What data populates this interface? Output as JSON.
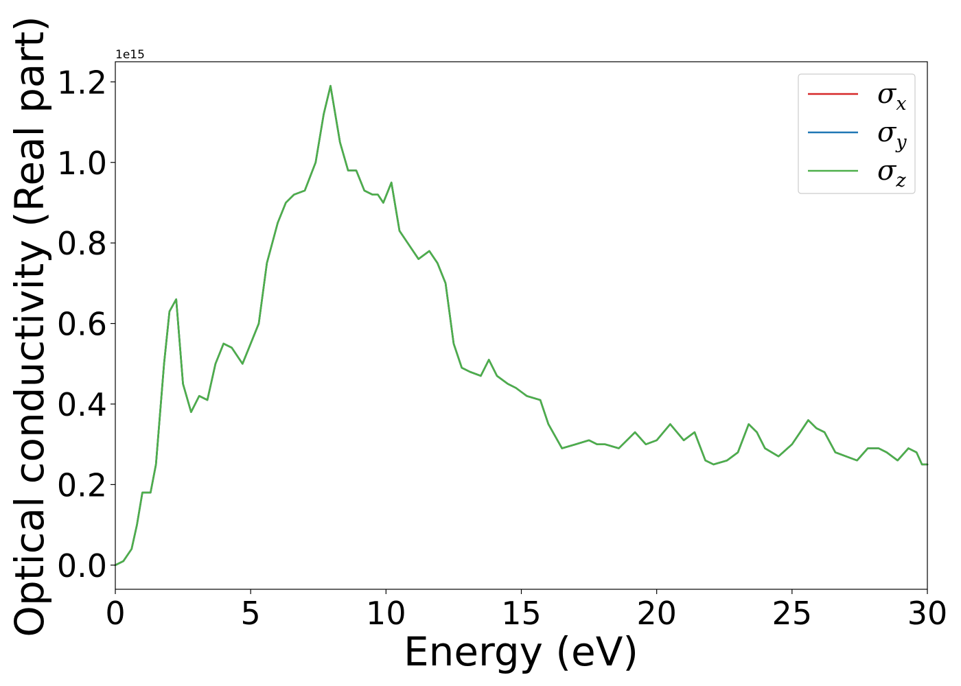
{
  "chart_data": {
    "type": "line",
    "xlabel": "Energy (eV)",
    "ylabel": "Optical conductivity (Real part)",
    "y_offset_label": "1e15",
    "xlim": [
      0,
      30
    ],
    "ylim": [
      -0.06,
      1.25
    ],
    "xticks": [
      0,
      5,
      10,
      15,
      20,
      25,
      30
    ],
    "xtick_labels": [
      "0",
      "5",
      "10",
      "15",
      "20",
      "25",
      "30"
    ],
    "yticks": [
      0.0,
      0.2,
      0.4,
      0.6,
      0.8,
      1.0,
      1.2
    ],
    "ytick_labels": [
      "0.0",
      "0.2",
      "0.4",
      "0.6",
      "0.8",
      "1.0",
      "1.2"
    ],
    "grid": false,
    "legend_position": "top-right",
    "x": [
      0,
      0.3,
      0.6,
      0.8,
      1.0,
      1.1,
      1.3,
      1.5,
      1.8,
      2.0,
      2.25,
      2.5,
      2.8,
      3.1,
      3.4,
      3.7,
      4.0,
      4.3,
      4.7,
      5.0,
      5.3,
      5.6,
      6.0,
      6.3,
      6.6,
      7.0,
      7.4,
      7.7,
      7.95,
      8.3,
      8.6,
      8.9,
      9.2,
      9.5,
      9.7,
      9.9,
      10.2,
      10.5,
      10.8,
      11.2,
      11.6,
      11.9,
      12.2,
      12.5,
      12.8,
      13.1,
      13.5,
      13.8,
      14.1,
      14.5,
      14.8,
      15.2,
      15.7,
      16.0,
      16.5,
      17.0,
      17.5,
      17.8,
      18.1,
      18.6,
      19.2,
      19.6,
      20.0,
      20.5,
      21.0,
      21.4,
      21.8,
      22.1,
      22.6,
      23.0,
      23.4,
      23.7,
      24.0,
      24.5,
      25.0,
      25.3,
      25.6,
      25.9,
      26.2,
      26.6,
      27.0,
      27.4,
      27.8,
      28.2,
      28.5,
      28.9,
      29.3,
      29.6,
      29.8,
      30.0
    ],
    "series": [
      {
        "name": "σx",
        "base": "σ",
        "sub": "x",
        "color": "#d62728",
        "values": [
          0.0,
          0.01,
          0.04,
          0.1,
          0.18,
          0.18,
          0.18,
          0.25,
          0.5,
          0.63,
          0.66,
          0.45,
          0.38,
          0.42,
          0.41,
          0.5,
          0.55,
          0.54,
          0.5,
          0.55,
          0.6,
          0.75,
          0.85,
          0.9,
          0.92,
          0.93,
          1.0,
          1.12,
          1.19,
          1.05,
          0.98,
          0.98,
          0.93,
          0.92,
          0.92,
          0.9,
          0.95,
          0.83,
          0.8,
          0.76,
          0.78,
          0.75,
          0.7,
          0.55,
          0.49,
          0.48,
          0.47,
          0.51,
          0.47,
          0.45,
          0.44,
          0.42,
          0.41,
          0.35,
          0.29,
          0.3,
          0.31,
          0.3,
          0.3,
          0.29,
          0.33,
          0.3,
          0.31,
          0.35,
          0.31,
          0.33,
          0.26,
          0.25,
          0.26,
          0.28,
          0.35,
          0.33,
          0.29,
          0.27,
          0.3,
          0.33,
          0.36,
          0.34,
          0.33,
          0.28,
          0.27,
          0.26,
          0.29,
          0.29,
          0.28,
          0.26,
          0.29,
          0.28,
          0.25,
          0.25
        ]
      },
      {
        "name": "σy",
        "base": "σ",
        "sub": "y",
        "color": "#1f77b4",
        "values": [
          0.0,
          0.01,
          0.04,
          0.1,
          0.18,
          0.18,
          0.18,
          0.25,
          0.5,
          0.63,
          0.66,
          0.45,
          0.38,
          0.42,
          0.41,
          0.5,
          0.55,
          0.54,
          0.5,
          0.55,
          0.6,
          0.75,
          0.85,
          0.9,
          0.92,
          0.93,
          1.0,
          1.12,
          1.19,
          1.05,
          0.98,
          0.98,
          0.93,
          0.92,
          0.92,
          0.9,
          0.95,
          0.83,
          0.8,
          0.76,
          0.78,
          0.75,
          0.7,
          0.55,
          0.49,
          0.48,
          0.47,
          0.51,
          0.47,
          0.45,
          0.44,
          0.42,
          0.41,
          0.35,
          0.29,
          0.3,
          0.31,
          0.3,
          0.3,
          0.29,
          0.33,
          0.3,
          0.31,
          0.35,
          0.31,
          0.33,
          0.26,
          0.25,
          0.26,
          0.28,
          0.35,
          0.33,
          0.29,
          0.27,
          0.3,
          0.33,
          0.36,
          0.34,
          0.33,
          0.28,
          0.27,
          0.26,
          0.29,
          0.29,
          0.28,
          0.26,
          0.29,
          0.28,
          0.25,
          0.25
        ]
      },
      {
        "name": "σz",
        "base": "σ",
        "sub": "z",
        "color": "#4daf4a",
        "values": [
          0.0,
          0.01,
          0.04,
          0.1,
          0.18,
          0.18,
          0.18,
          0.25,
          0.5,
          0.63,
          0.66,
          0.45,
          0.38,
          0.42,
          0.41,
          0.5,
          0.55,
          0.54,
          0.5,
          0.55,
          0.6,
          0.75,
          0.85,
          0.9,
          0.92,
          0.93,
          1.0,
          1.12,
          1.19,
          1.05,
          0.98,
          0.98,
          0.93,
          0.92,
          0.92,
          0.9,
          0.95,
          0.83,
          0.8,
          0.76,
          0.78,
          0.75,
          0.7,
          0.55,
          0.49,
          0.48,
          0.47,
          0.51,
          0.47,
          0.45,
          0.44,
          0.42,
          0.41,
          0.35,
          0.29,
          0.3,
          0.31,
          0.3,
          0.3,
          0.29,
          0.33,
          0.3,
          0.31,
          0.35,
          0.31,
          0.33,
          0.26,
          0.25,
          0.26,
          0.28,
          0.35,
          0.33,
          0.29,
          0.27,
          0.3,
          0.33,
          0.36,
          0.34,
          0.33,
          0.28,
          0.27,
          0.26,
          0.29,
          0.29,
          0.28,
          0.26,
          0.29,
          0.28,
          0.25,
          0.25
        ]
      }
    ]
  }
}
